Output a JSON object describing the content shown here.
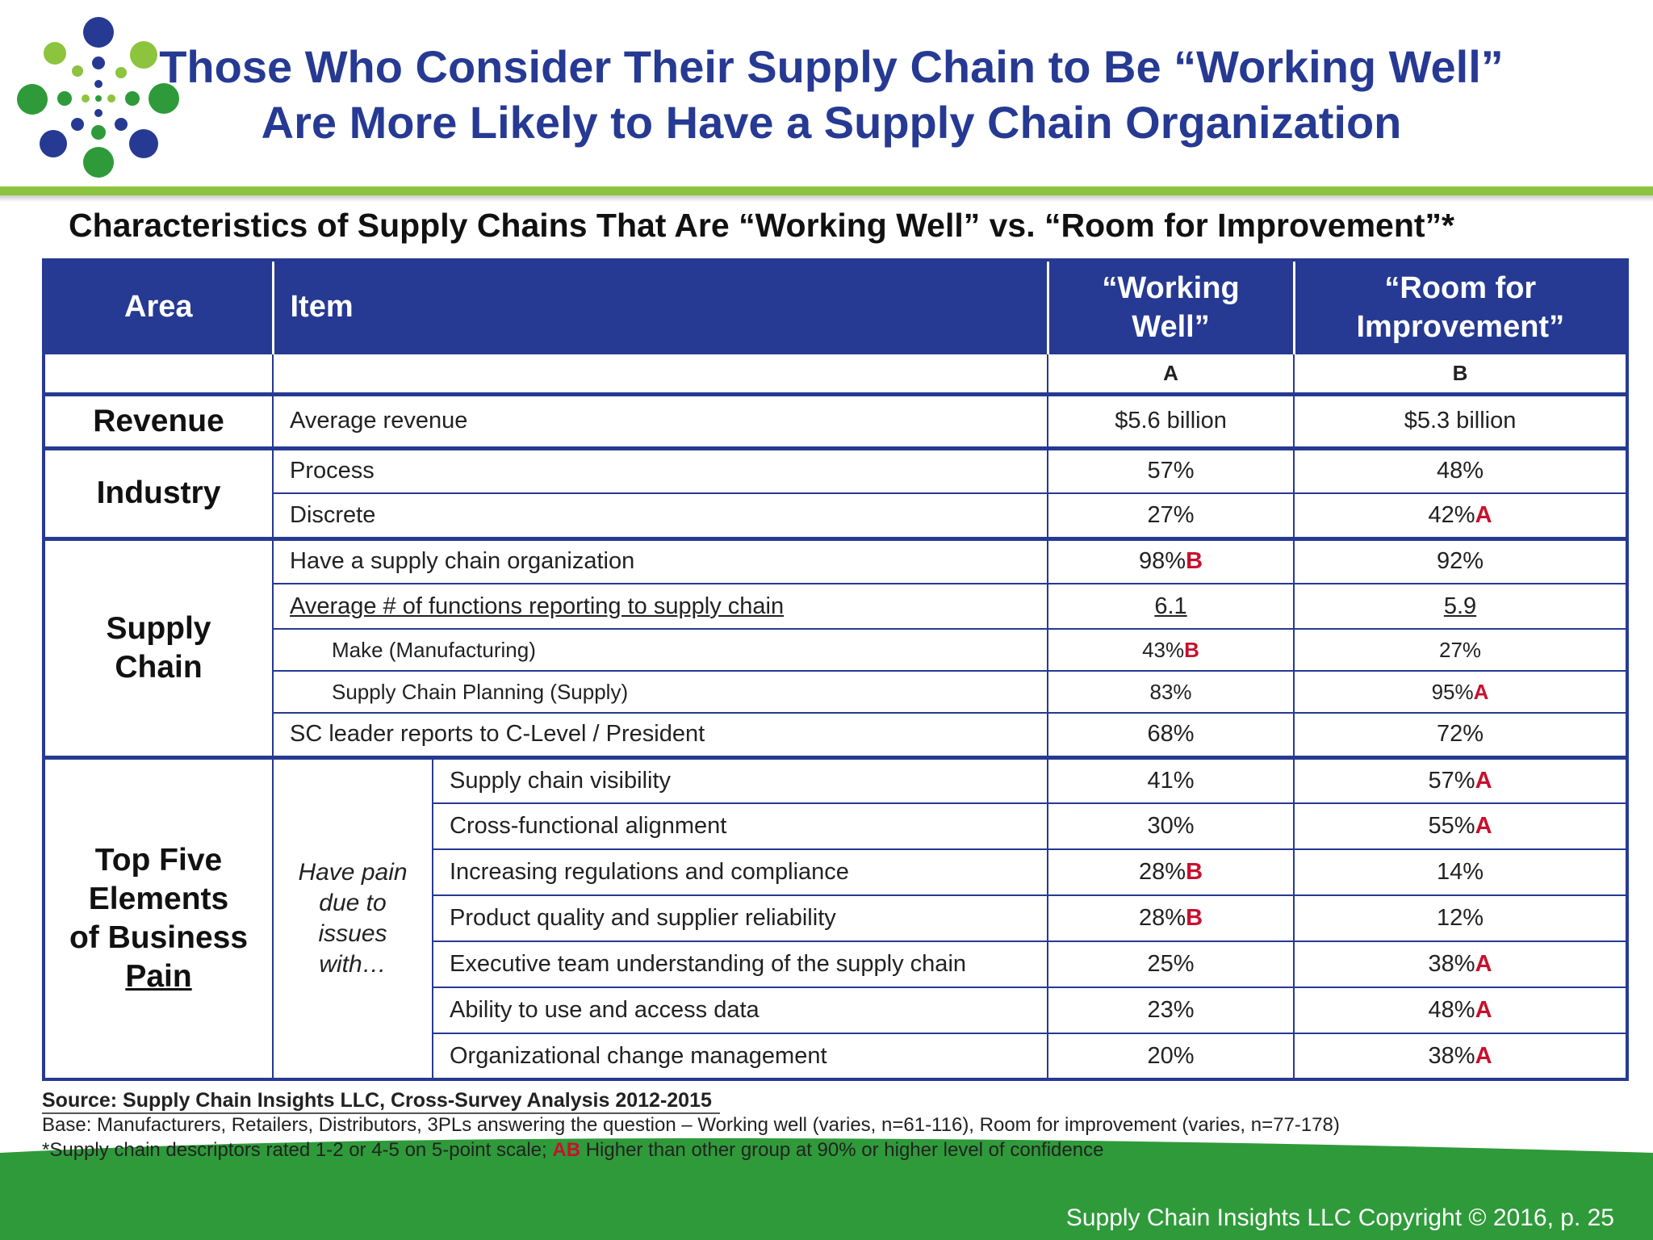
{
  "title": {
    "line1": "Those Who Consider Their Supply Chain to Be “Working Well”",
    "line2": "Are More Likely to Have a Supply Chain Organization"
  },
  "subtitle": "Characteristics of Supply Chains That Are “Working Well” vs. “Room for Improvement”*",
  "table": {
    "headers": {
      "area": "Area",
      "item": "Item",
      "working_well_1": "“Working",
      "working_well_2": "Well”",
      "room_1": "“Room for",
      "room_2": "Improvement”",
      "label_a": "A",
      "label_b": "B"
    },
    "revenue": {
      "area": "Revenue",
      "item": "Average revenue",
      "a": "$5.6 billion",
      "b": "$5.3 billion"
    },
    "industry": {
      "area": "Industry",
      "rows": [
        {
          "item": "Process",
          "a": "57%",
          "a_mark": "",
          "b": "48%",
          "b_mark": ""
        },
        {
          "item": "Discrete",
          "a": "27%",
          "a_mark": "",
          "b": "42%",
          "b_mark": "A"
        }
      ]
    },
    "supply_chain": {
      "area_1": "Supply",
      "area_2": "Chain",
      "org": {
        "item": "Have a supply chain organization",
        "a": "98%",
        "a_mark": "B",
        "b": "92%",
        "b_mark": ""
      },
      "functions": {
        "item": "Average # of functions reporting to supply chain",
        "a": "6.1",
        "b": "5.9"
      },
      "make": {
        "item": "Make (Manufacturing)",
        "a": "43%",
        "a_mark": "B",
        "b": "27%",
        "b_mark": ""
      },
      "planning": {
        "item": "Supply Chain Planning (Supply)",
        "a": "83%",
        "a_mark": "",
        "b": "95%",
        "b_mark": "A"
      },
      "leader": {
        "item": "SC leader reports to C-Level / President",
        "a": "68%",
        "a_mark": "",
        "b": "72%",
        "b_mark": ""
      }
    },
    "pain": {
      "area_1": "Top Five",
      "area_2": "Elements",
      "area_3": "of Business",
      "area_4": "Pain",
      "sub_1": "Have pain",
      "sub_2": "due to",
      "sub_3": "issues",
      "sub_4": "with…",
      "rows": [
        {
          "item": "Supply chain visibility",
          "a": "41%",
          "a_mark": "",
          "b": "57%",
          "b_mark": "A"
        },
        {
          "item": "Cross-functional alignment",
          "a": "30%",
          "a_mark": "",
          "b": "55%",
          "b_mark": "A"
        },
        {
          "item": "Increasing regulations and compliance",
          "a": "28%",
          "a_mark": "B",
          "b": "14%",
          "b_mark": ""
        },
        {
          "item": "Product quality and supplier reliability",
          "a": "28%",
          "a_mark": "B",
          "b": "12%",
          "b_mark": ""
        },
        {
          "item": "Executive team understanding of the supply chain",
          "a": "25%",
          "a_mark": "",
          "b": "38%",
          "b_mark": "A"
        },
        {
          "item": "Ability to use and access data",
          "a": "23%",
          "a_mark": "",
          "b": "48%",
          "b_mark": "A"
        },
        {
          "item": "Organizational change management",
          "a": "20%",
          "a_mark": "",
          "b": "38%",
          "b_mark": "A"
        }
      ]
    }
  },
  "footer": {
    "source": "Source: Supply Chain Insights LLC, Cross-Survey Analysis 2012-2015",
    "base": "Base: Manufacturers, Retailers, Distributors, 3PLs answering the question – Working well (varies, n=61-116), Room for improvement (varies, n=77-178)",
    "note_1": "*Supply chain descriptors rated 1-2 or 4-5 on 5-point scale;",
    "note_mark": "AB",
    "note_2": "Higher than other group at 90% or higher level of confidence",
    "copyright": "Supply Chain Insights LLC Copyright © 2016, p. 25"
  },
  "colors": {
    "brand_blue": "#263a93",
    "brand_green": "#8cc43e",
    "footer_green": "#2f9a3a",
    "significance_red": "#c8102e"
  }
}
